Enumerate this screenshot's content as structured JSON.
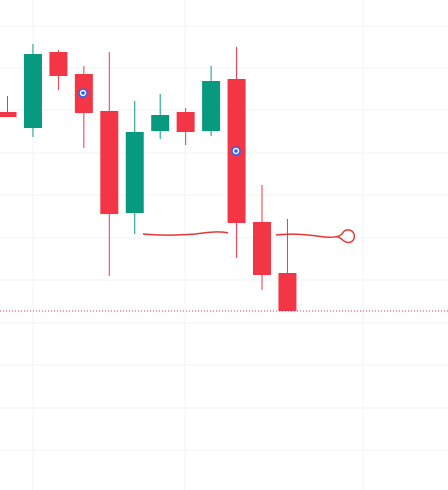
{
  "chart_data": {
    "type": "candlestick",
    "up_color": "#089981",
    "down_color": "#f23645",
    "open": [
      378,
      362,
      438,
      416,
      379,
      277,
      359,
      378,
      359,
      411,
      268,
      217
    ],
    "high": [
      394,
      446,
      440,
      424,
      438,
      389,
      396,
      382,
      424,
      443,
      305,
      271
    ],
    "low": [
      373,
      353,
      400,
      342,
      214,
      256,
      351,
      345,
      354,
      232,
      200,
      179
    ],
    "close": [
      373,
      436,
      414,
      377,
      276,
      358,
      375,
      358,
      409,
      267,
      215,
      179
    ],
    "ylim": [
      0,
      490
    ],
    "grid": true,
    "last_price_line": true
  }
}
